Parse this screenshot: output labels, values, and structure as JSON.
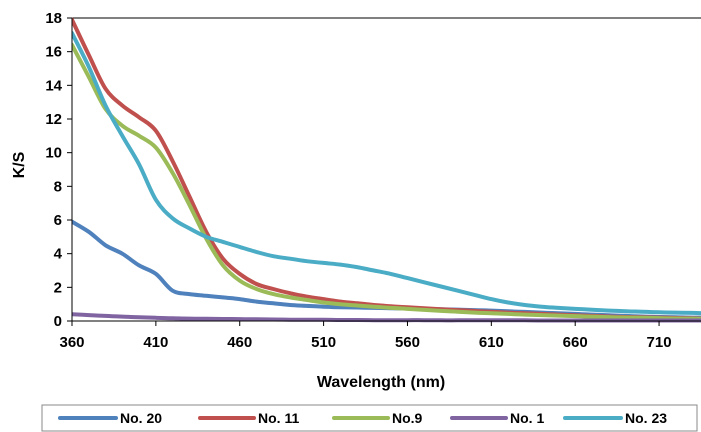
{
  "chart_data": {
    "type": "line",
    "xlabel": "Wavelength (nm)",
    "ylabel": "K/S",
    "xlim": [
      360,
      735
    ],
    "ylim": [
      0,
      18
    ],
    "xticks": [
      360,
      410,
      460,
      510,
      560,
      610,
      660,
      710
    ],
    "yticks": [
      0,
      2,
      4,
      6,
      8,
      10,
      12,
      14,
      16,
      18
    ],
    "grid": false,
    "legend_position": "bottom",
    "x": [
      360,
      370,
      380,
      390,
      400,
      410,
      420,
      430,
      440,
      450,
      460,
      470,
      480,
      490,
      500,
      510,
      520,
      530,
      540,
      550,
      560,
      570,
      580,
      590,
      600,
      610,
      620,
      630,
      640,
      650,
      660,
      670,
      680,
      690,
      700,
      710,
      720,
      730,
      735
    ],
    "series": [
      {
        "name": "No. 20",
        "color": "#4F81BD",
        "values": [
          5.9,
          5.3,
          4.5,
          4.0,
          3.3,
          2.8,
          1.8,
          1.6,
          1.5,
          1.4,
          1.3,
          1.15,
          1.05,
          0.95,
          0.9,
          0.85,
          0.82,
          0.8,
          0.78,
          0.76,
          0.74,
          0.72,
          0.7,
          0.68,
          0.65,
          0.62,
          0.58,
          0.54,
          0.5,
          0.46,
          0.42,
          0.38,
          0.34,
          0.3,
          0.27,
          0.24,
          0.22,
          0.2,
          0.2
        ]
      },
      {
        "name": "No. 11",
        "color": "#C0504D",
        "values": [
          17.9,
          15.8,
          13.8,
          12.8,
          12.1,
          11.3,
          9.5,
          7.4,
          5.3,
          3.7,
          2.8,
          2.2,
          1.9,
          1.65,
          1.45,
          1.3,
          1.15,
          1.05,
          0.95,
          0.88,
          0.82,
          0.76,
          0.7,
          0.65,
          0.6,
          0.55,
          0.5,
          0.46,
          0.42,
          0.38,
          0.34,
          0.3,
          0.27,
          0.24,
          0.22,
          0.2,
          0.18,
          0.16,
          0.15
        ]
      },
      {
        "name": "No.9",
        "color": "#9BBB59",
        "values": [
          16.4,
          14.5,
          12.6,
          11.6,
          11.0,
          10.3,
          8.8,
          6.9,
          4.9,
          3.3,
          2.4,
          1.9,
          1.6,
          1.4,
          1.25,
          1.1,
          1.0,
          0.92,
          0.85,
          0.78,
          0.72,
          0.66,
          0.6,
          0.55,
          0.5,
          0.46,
          0.42,
          0.38,
          0.35,
          0.32,
          0.29,
          0.26,
          0.23,
          0.21,
          0.19,
          0.17,
          0.15,
          0.14,
          0.13
        ]
      },
      {
        "name": "No. 1",
        "color": "#8064A2",
        "values": [
          0.4,
          0.35,
          0.3,
          0.26,
          0.22,
          0.19,
          0.16,
          0.14,
          0.13,
          0.12,
          0.11,
          0.1,
          0.09,
          0.08,
          0.07,
          0.07,
          0.06,
          0.06,
          0.05,
          0.05,
          0.05,
          0.05,
          0.04,
          0.04,
          0.04,
          0.04,
          0.04,
          0.04,
          0.03,
          0.03,
          0.03,
          0.03,
          0.03,
          0.03,
          0.03,
          0.03,
          0.03,
          0.03,
          0.03
        ]
      },
      {
        "name": "No. 23",
        "color": "#4BACC6",
        "values": [
          17.1,
          15.1,
          12.8,
          11.0,
          9.3,
          7.2,
          6.1,
          5.5,
          5.0,
          4.7,
          4.4,
          4.1,
          3.85,
          3.7,
          3.55,
          3.45,
          3.35,
          3.2,
          3.0,
          2.8,
          2.55,
          2.3,
          2.05,
          1.8,
          1.55,
          1.3,
          1.1,
          0.95,
          0.85,
          0.78,
          0.72,
          0.67,
          0.62,
          0.58,
          0.55,
          0.52,
          0.5,
          0.48,
          0.47
        ]
      }
    ]
  }
}
